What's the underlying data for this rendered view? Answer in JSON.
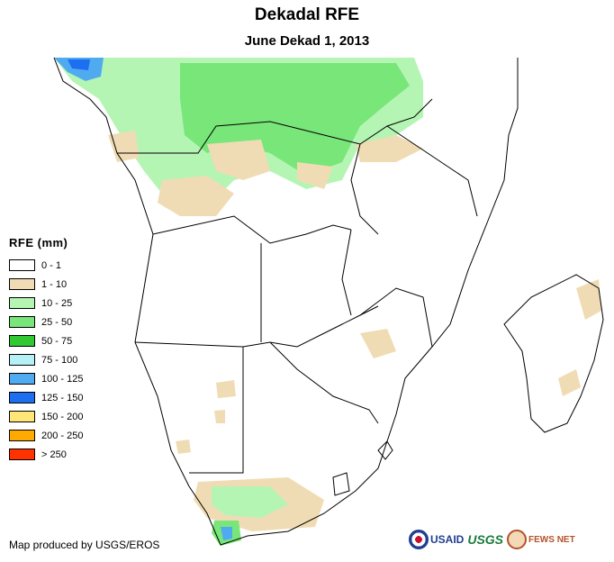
{
  "header": {
    "title": "Dekadal RFE",
    "subtitle": "June Dekad 1, 2013"
  },
  "legend": {
    "title": "RFE (mm)",
    "items": [
      {
        "label": "0 - 1",
        "color": "#ffffff"
      },
      {
        "label": "1 - 10",
        "color": "#f0dcb4"
      },
      {
        "label": "10 - 25",
        "color": "#b4f5b4"
      },
      {
        "label": "25 - 50",
        "color": "#78e678"
      },
      {
        "label": "50 - 75",
        "color": "#32c832"
      },
      {
        "label": "75 - 100",
        "color": "#b4f0f5"
      },
      {
        "label": "100 - 125",
        "color": "#50aaf0"
      },
      {
        "label": "125 - 150",
        "color": "#1e6ef0"
      },
      {
        "label": "150 - 200",
        "color": "#ffe678"
      },
      {
        "label": "200 - 250",
        "color": "#ffaa00"
      },
      {
        "label": "> 250",
        "color": "#ff3200"
      }
    ]
  },
  "credit": "Map produced by USGS/EROS",
  "logos": {
    "usaid": "USAID",
    "usgs": "USGS",
    "fews": "FEWS NET"
  }
}
